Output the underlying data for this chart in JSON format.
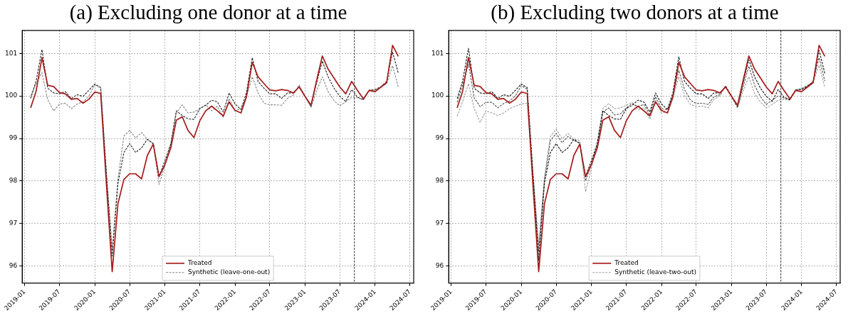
{
  "chart_data": [
    {
      "type": "line",
      "title": "(a) Excluding one donor at a time",
      "x": [
        "2019-02",
        "2019-03",
        "2019-04",
        "2019-05",
        "2019-06",
        "2019-07",
        "2019-08",
        "2019-09",
        "2019-10",
        "2019-11",
        "2019-12",
        "2020-01",
        "2020-02",
        "2020-03",
        "2020-04",
        "2020-05",
        "2020-06",
        "2020-07",
        "2020-08",
        "2020-09",
        "2020-10",
        "2020-11",
        "2020-12",
        "2021-01",
        "2021-02",
        "2021-03",
        "2021-04",
        "2021-05",
        "2021-06",
        "2021-07",
        "2021-08",
        "2021-09",
        "2021-10",
        "2021-11",
        "2021-12",
        "2022-01",
        "2022-02",
        "2022-03",
        "2022-04",
        "2022-05",
        "2022-06",
        "2022-07",
        "2022-08",
        "2022-09",
        "2022-10",
        "2022-11",
        "2022-12",
        "2023-01",
        "2023-02",
        "2023-03",
        "2023-04",
        "2023-05",
        "2023-06",
        "2023-07",
        "2023-08",
        "2023-09",
        "2023-10",
        "2023-11",
        "2023-12",
        "2024-01",
        "2024-02",
        "2024-03",
        "2024-04",
        "2024-05"
      ],
      "series": [
        {
          "name": "Treated",
          "color": "#a51c1c",
          "line_style": "solid",
          "values": [
            99.72,
            100.1,
            100.9,
            100.25,
            100.22,
            100.08,
            100.05,
            99.92,
            99.94,
            99.83,
            99.92,
            100.09,
            100.06,
            97.98,
            95.87,
            97.47,
            98.04,
            98.17,
            98.17,
            98.05,
            98.6,
            98.87,
            98.1,
            98.39,
            98.79,
            99.43,
            99.51,
            99.19,
            99.02,
            99.41,
            99.65,
            99.76,
            99.65,
            99.53,
            99.86,
            99.66,
            99.6,
            99.97,
            100.79,
            100.45,
            100.29,
            100.14,
            100.12,
            100.15,
            100.13,
            100.07,
            100.21,
            99.99,
            99.78,
            100.34,
            100.94,
            100.63,
            100.42,
            100.21,
            100.05,
            100.34,
            100.13,
            99.93,
            100.13,
            100.1,
            100.21,
            100.31,
            101.19,
            100.93
          ]
        },
        {
          "color": "#222222",
          "line_style": "dashed",
          "values": [
            99.94,
            100.34,
            101.09,
            100.18,
            100.07,
            100.05,
            100.1,
            99.94,
            100.03,
            99.99,
            100.13,
            100.28,
            100.2,
            98.22,
            96.24,
            97.95,
            98.67,
            98.88,
            98.67,
            98.78,
            98.98,
            98.88,
            98.11,
            98.48,
            98.88,
            99.65,
            99.54,
            99.46,
            99.45,
            99.7,
            99.78,
            99.9,
            99.86,
            99.62,
            100.07,
            99.81,
            99.68,
            100.07,
            100.9,
            100.34,
            100.18,
            100.05,
            100.05,
            99.94,
            100.07,
            100.07,
            100.22,
            99.99,
            99.76,
            100.29,
            100.82,
            100.45,
            100.18,
            99.99,
            99.87,
            100.15,
            99.97,
            99.91,
            100.13,
            100.15,
            100.22,
            100.34,
            101.03,
            100.53
          ]
        },
        {
          "name": "Synthetic (leave-one-out)",
          "color": "#888888",
          "line_style": "dashed",
          "values": [
            99.99,
            100.29,
            100.55,
            99.91,
            99.65,
            99.81,
            99.83,
            99.7,
            99.81,
            99.86,
            99.99,
            100.26,
            100.18,
            98.27,
            96.4,
            98.06,
            99.06,
            99.19,
            99.01,
            99.14,
            98.98,
            98.88,
            97.92,
            98.37,
            98.9,
            99.6,
            99.79,
            99.6,
            99.62,
            99.7,
            99.79,
            99.65,
            99.76,
            99.49,
            99.94,
            99.65,
            99.7,
            99.97,
            100.45,
            100.07,
            99.83,
            99.79,
            99.79,
            99.78,
            99.94,
            100.02,
            100.26,
            99.99,
            99.73,
            100.1,
            100.45,
            100.1,
            99.89,
            99.77,
            99.86,
            99.97,
            99.96,
            99.91,
            100.14,
            100.13,
            100.21,
            100.29,
            100.71,
            100.21
          ]
        }
      ],
      "xlim": [
        "2018-12-19",
        "2024-07-20"
      ],
      "xticks": [
        "2019-01",
        "2019-07",
        "2020-01",
        "2020-07",
        "2021-01",
        "2021-07",
        "2022-01",
        "2022-07",
        "2023-01",
        "2023-07",
        "2024-01",
        "2024-07"
      ],
      "ylim": [
        95.6,
        101.54
      ],
      "yticks": [
        96,
        97,
        98,
        99,
        100,
        101
      ],
      "ref_lines": [
        {
          "axis": "x",
          "value": "2023-09-15",
          "color": "#333333",
          "line_style": "dashed"
        }
      ],
      "grid": true,
      "legend": "bottom"
    },
    {
      "type": "line",
      "title": "(b) Excluding two donors at a time",
      "x": [
        "2019-02",
        "2019-03",
        "2019-04",
        "2019-05",
        "2019-06",
        "2019-07",
        "2019-08",
        "2019-09",
        "2019-10",
        "2019-11",
        "2019-12",
        "2020-01",
        "2020-02",
        "2020-03",
        "2020-04",
        "2020-05",
        "2020-06",
        "2020-07",
        "2020-08",
        "2020-09",
        "2020-10",
        "2020-11",
        "2020-12",
        "2021-01",
        "2021-02",
        "2021-03",
        "2021-04",
        "2021-05",
        "2021-06",
        "2021-07",
        "2021-08",
        "2021-09",
        "2021-10",
        "2021-11",
        "2021-12",
        "2022-01",
        "2022-02",
        "2022-03",
        "2022-04",
        "2022-05",
        "2022-06",
        "2022-07",
        "2022-08",
        "2022-09",
        "2022-10",
        "2022-11",
        "2022-12",
        "2023-01",
        "2023-02",
        "2023-03",
        "2023-04",
        "2023-05",
        "2023-06",
        "2023-07",
        "2023-08",
        "2023-09",
        "2023-10",
        "2023-11",
        "2023-12",
        "2024-01",
        "2024-02",
        "2024-03",
        "2024-04",
        "2024-05"
      ],
      "series": [
        {
          "name": "Treated",
          "color": "#a51c1c",
          "line_style": "solid",
          "values": [
            99.72,
            100.1,
            100.9,
            100.25,
            100.22,
            100.08,
            100.05,
            99.92,
            99.94,
            99.83,
            99.92,
            100.09,
            100.06,
            97.98,
            95.87,
            97.47,
            98.04,
            98.17,
            98.17,
            98.05,
            98.6,
            98.87,
            98.1,
            98.39,
            98.79,
            99.43,
            99.51,
            99.19,
            99.02,
            99.41,
            99.65,
            99.76,
            99.65,
            99.53,
            99.86,
            99.66,
            99.6,
            99.97,
            100.79,
            100.45,
            100.29,
            100.14,
            100.12,
            100.15,
            100.13,
            100.07,
            100.21,
            99.99,
            99.78,
            100.34,
            100.94,
            100.63,
            100.42,
            100.21,
            100.05,
            100.34,
            100.13,
            99.93,
            100.13,
            100.1,
            100.21,
            100.31,
            101.19,
            100.93
          ]
        },
        {
          "color": "#111111",
          "line_style": "dashed",
          "values": [
            99.94,
            100.34,
            101.12,
            100.18,
            100.07,
            100.05,
            100.1,
            99.94,
            100.03,
            99.99,
            100.13,
            100.28,
            100.2,
            98.22,
            96.14,
            97.95,
            98.67,
            98.88,
            98.67,
            98.78,
            98.98,
            98.88,
            98.11,
            98.48,
            98.88,
            99.65,
            99.54,
            99.46,
            99.45,
            99.7,
            99.78,
            99.9,
            99.86,
            99.62,
            100.07,
            99.81,
            99.68,
            100.07,
            100.92,
            100.34,
            100.18,
            100.05,
            100.05,
            99.94,
            100.07,
            100.07,
            100.22,
            99.99,
            99.76,
            100.29,
            100.85,
            100.45,
            100.18,
            99.99,
            99.87,
            100.15,
            99.97,
            99.91,
            100.13,
            100.15,
            100.22,
            100.34,
            101.07,
            100.53
          ]
        },
        {
          "color": "#555555",
          "line_style": "dashed",
          "values": [
            99.85,
            100.25,
            100.75,
            99.95,
            99.75,
            99.85,
            99.85,
            99.72,
            99.82,
            99.88,
            100.0,
            100.24,
            100.16,
            98.25,
            96.35,
            98.02,
            98.95,
            99.12,
            98.9,
            99.05,
            98.95,
            98.9,
            98.0,
            98.4,
            98.9,
            99.62,
            99.72,
            99.55,
            99.58,
            99.72,
            99.82,
            99.75,
            99.8,
            99.55,
            99.98,
            99.7,
            99.68,
            100.0,
            100.6,
            100.15,
            99.9,
            99.82,
            99.83,
            99.8,
            99.98,
            100.03,
            100.24,
            99.99,
            99.74,
            100.2,
            100.7,
            100.25,
            99.98,
            99.8,
            99.9,
            100.0,
            99.95,
            99.92,
            100.14,
            100.16,
            100.24,
            100.33,
            100.9,
            100.35
          ]
        },
        {
          "name": "Synthetic (leave-two-out)",
          "color": "#a0a0a0",
          "line_style": "dashed",
          "values": [
            99.52,
            99.86,
            100.29,
            99.7,
            99.38,
            99.65,
            99.6,
            99.54,
            99.6,
            99.7,
            99.76,
            99.81,
            99.83,
            98.2,
            96.5,
            98.1,
            99.05,
            99.22,
            99.0,
            99.12,
            98.98,
            98.95,
            97.75,
            98.3,
            98.95,
            99.7,
            99.82,
            99.7,
            99.72,
            99.78,
            99.85,
            99.68,
            99.72,
            99.45,
            99.9,
            99.6,
            99.62,
            99.95,
            100.45,
            100.0,
            99.8,
            99.75,
            99.76,
            99.72,
            99.92,
            100.0,
            100.22,
            99.97,
            99.72,
            100.1,
            100.45,
            100.05,
            99.85,
            99.72,
            99.8,
            99.9,
            99.92,
            99.9,
            100.15,
            100.18,
            100.25,
            100.32,
            100.72,
            100.2
          ]
        }
      ],
      "xlim": [
        "2018-12-19",
        "2024-07-20"
      ],
      "xticks": [
        "2019-01",
        "2019-07",
        "2020-01",
        "2020-07",
        "2021-01",
        "2021-07",
        "2022-01",
        "2022-07",
        "2023-01",
        "2023-07",
        "2024-01",
        "2024-07"
      ],
      "ylim": [
        95.6,
        101.54
      ],
      "yticks": [
        96,
        97,
        98,
        99,
        100,
        101
      ],
      "ref_lines": [
        {
          "axis": "x",
          "value": "2023-09-15",
          "color": "#333333",
          "line_style": "dashed"
        }
      ],
      "grid": true,
      "legend": "bottom"
    }
  ]
}
